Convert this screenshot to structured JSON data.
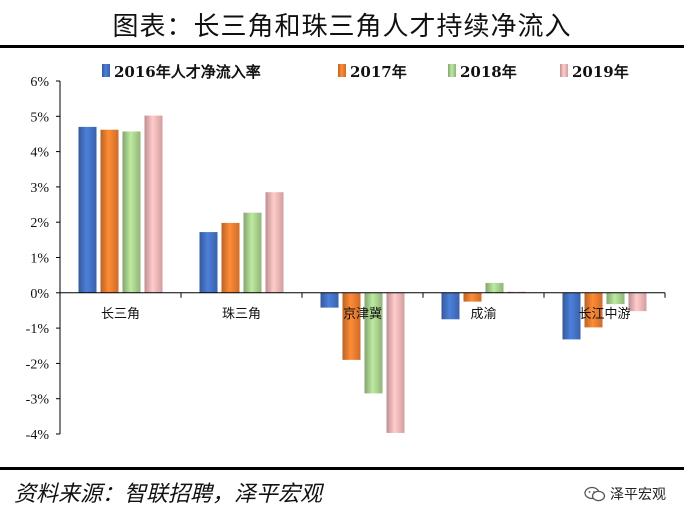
{
  "header": {
    "title": "图表：长三角和珠三角人才持续净流入"
  },
  "footer": {
    "source": "资料来源：智联招聘，泽平宏观",
    "brand": "泽平宏观",
    "brand_icon": "wechat-icon"
  },
  "chart_data": {
    "type": "bar",
    "title": "图表：长三角和珠三角人才持续净流入",
    "xlabel": "",
    "ylabel": "",
    "categories": [
      "长三角",
      "珠三角",
      "京津冀",
      "成渝",
      "长江中游"
    ],
    "ylim": [
      -4,
      6
    ],
    "yticks": [
      6,
      5,
      4,
      3,
      2,
      1,
      0,
      -1,
      -2,
      -3,
      -4
    ],
    "ytick_labels": [
      "6%",
      "5%",
      "4%",
      "3%",
      "2%",
      "1%",
      "0%",
      "-1%",
      "-2%",
      "-3%",
      "-4%"
    ],
    "legend_position": "top",
    "grid": false,
    "series": [
      {
        "name": "2016年人才净流入率",
        "color": "#4472C4",
        "values": [
          4.7,
          1.72,
          -0.42,
          -0.75,
          -1.32
        ]
      },
      {
        "name": "2017年",
        "color": "#ED7D31",
        "values": [
          4.62,
          1.98,
          -1.9,
          -0.25,
          -0.98
        ]
      },
      {
        "name": "2018年",
        "color": "#A9D18E",
        "values": [
          4.57,
          2.27,
          -2.85,
          0.28,
          -0.32
        ]
      },
      {
        "name": "2019年",
        "color": "#F4B6B6",
        "values": [
          5.02,
          2.85,
          -3.97,
          0.03,
          -0.52
        ]
      }
    ]
  }
}
